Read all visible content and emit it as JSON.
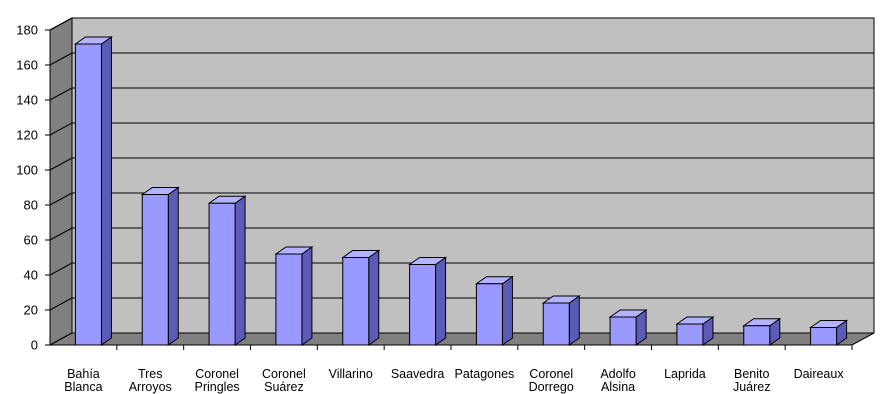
{
  "chart_data": {
    "type": "bar",
    "style": "3d-column",
    "categories": [
      [
        "Bahía",
        "Blanca"
      ],
      [
        "Tres",
        "Arroyos"
      ],
      [
        "Coronel",
        "Pringles"
      ],
      [
        "Coronel",
        "Suárez"
      ],
      [
        "Villarino"
      ],
      [
        "Saavedra"
      ],
      [
        "Patagones"
      ],
      [
        "Coronel",
        "Dorrego"
      ],
      [
        "Adolfo",
        "Alsina"
      ],
      [
        "Laprida"
      ],
      [
        "Benito",
        "Juárez"
      ],
      [
        "Daireaux"
      ]
    ],
    "values": [
      172,
      86,
      81,
      52,
      50,
      46,
      35,
      24,
      16,
      12,
      11,
      10
    ],
    "ylim": [
      0,
      180
    ],
    "yticks": [
      "0",
      "20",
      "40",
      "60",
      "80",
      "100",
      "120",
      "140",
      "160",
      "180"
    ],
    "title": "",
    "xlabel": "",
    "ylabel": "",
    "grid": true,
    "colors": {
      "bar_front": "#9999ff",
      "bar_side": "#5c5cb8",
      "bar_top": "#b3b3ff",
      "back_wall": "#c0c0c0",
      "side_wall": "#808080",
      "floor": "#808080",
      "gridline": "#000000"
    }
  }
}
